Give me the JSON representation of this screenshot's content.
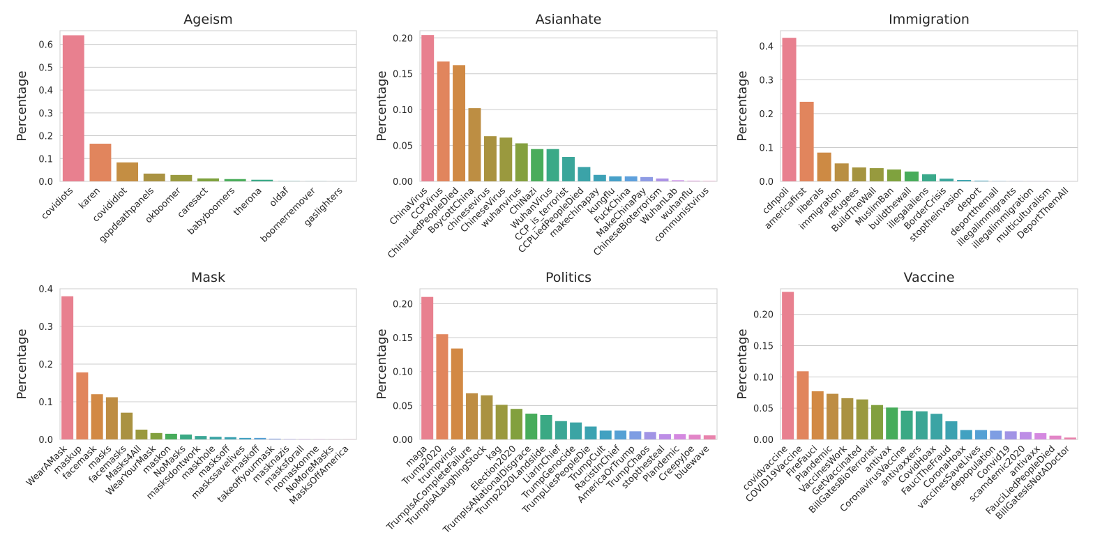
{
  "chart_data": [
    {
      "type": "bar",
      "title": "Ageism",
      "ylabel": "Percentage",
      "xlabel": "",
      "ylim": [
        0,
        0.66
      ],
      "yticks": [
        0.0,
        0.1,
        0.2,
        0.3,
        0.4,
        0.5,
        0.6
      ],
      "ytick_labels": [
        "0.0",
        "0.1",
        "0.2",
        "0.3",
        "0.4",
        "0.5",
        "0.6"
      ],
      "categories": [
        "covidiots",
        "karen",
        "covididiot",
        "gopdeathpanels",
        "okboomer",
        "caresact",
        "babyboomers",
        "therona",
        "oldaf",
        "boomerremover",
        "gaslighters"
      ],
      "values": [
        0.64,
        0.165,
        0.083,
        0.034,
        0.028,
        0.013,
        0.01,
        0.007,
        0.001,
        0.0005,
        0.0003
      ],
      "colors": [
        "#e8808f",
        "#e1855d",
        "#c48e43",
        "#aa9242",
        "#9a9a3f",
        "#7fa23e",
        "#4aad5b",
        "#3aa987",
        "#3ba59e",
        "#3ba3b0",
        "#5aa2d6"
      ],
      "grid": true
    },
    {
      "type": "bar",
      "title": "Asianhate",
      "ylabel": "Percentage",
      "xlabel": "",
      "ylim": [
        0,
        0.21
      ],
      "yticks": [
        0.0,
        0.05,
        0.1,
        0.15,
        0.2
      ],
      "ytick_labels": [
        "0.00",
        "0.05",
        "0.10",
        "0.15",
        "0.20"
      ],
      "categories": [
        "ChinaVirus",
        "CCPVirus",
        "ChinaLiedPeopleDied",
        "BoycottChina",
        "chinesevirus",
        "ChineseVirus",
        "wuhanvirus",
        "ChiNazi",
        "WuhanVirus",
        "CCP_is_terrorist",
        "CCPLiedPeopleDied",
        "makechinapay",
        "kungflu",
        "FuckChina",
        "MakeChinaPay",
        "ChineseBioterrorism",
        "WuhanLab",
        "wuhanflu",
        "communistvirus"
      ],
      "values": [
        0.204,
        0.167,
        0.162,
        0.102,
        0.063,
        0.061,
        0.053,
        0.045,
        0.045,
        0.034,
        0.02,
        0.009,
        0.007,
        0.007,
        0.006,
        0.004,
        0.0015,
        0.0008,
        0.0005
      ],
      "colors": [
        "#e8808f",
        "#e1855d",
        "#d08944",
        "#bd8e43",
        "#a9923f",
        "#9a993e",
        "#84a03e",
        "#49ac5b",
        "#3aa987",
        "#3ba69a",
        "#3ba3a8",
        "#3da1b6",
        "#47a0c8",
        "#5ea0dc",
        "#8e9be4",
        "#ac92e5",
        "#c88be6",
        "#d983d6",
        "#e684bb"
      ],
      "grid": true
    },
    {
      "type": "bar",
      "title": "Immigration",
      "ylabel": "Percentage",
      "xlabel": "",
      "ylim": [
        0,
        0.445
      ],
      "yticks": [
        0.0,
        0.1,
        0.2,
        0.3,
        0.4
      ],
      "ytick_labels": [
        "0.0",
        "0.1",
        "0.2",
        "0.3",
        "0.4"
      ],
      "categories": [
        "cdnpoli",
        "americafirst",
        "liberals",
        "immigration",
        "refugees",
        "BuildTheWall",
        "MuslimBan",
        "buildthewall",
        "illegalaliens",
        "BorderCrisis",
        "stoptheinvasion",
        "deport",
        "deportthemall",
        "illegalimmigrants",
        "illegalimmigration",
        "multiculturalism",
        "DeportThemAll"
      ],
      "values": [
        0.424,
        0.235,
        0.085,
        0.053,
        0.041,
        0.039,
        0.035,
        0.029,
        0.021,
        0.008,
        0.004,
        0.002,
        0.0006,
        0.0004,
        0.0003,
        0.0002,
        0.0001
      ],
      "colors": [
        "#e8808f",
        "#e1855d",
        "#cd8a44",
        "#b98f43",
        "#a59440",
        "#979a3e",
        "#7fa23e",
        "#48ac5b",
        "#3aa98a",
        "#3ba69c",
        "#3ba3ad",
        "#3ea1bf",
        "#50a0d2",
        "#7f9de3",
        "#a694e5",
        "#c78be6",
        "#df86c2"
      ],
      "grid": true
    },
    {
      "type": "bar",
      "title": "Mask",
      "ylabel": "Percentage",
      "xlabel": "",
      "ylim": [
        0,
        0.4
      ],
      "yticks": [
        0.0,
        0.1,
        0.2,
        0.3,
        0.4
      ],
      "ytick_labels": [
        "0.0",
        "0.1",
        "0.2",
        "0.3",
        "0.4"
      ],
      "categories": [
        "WearAMask",
        "maskup",
        "facemask",
        "masks",
        "facemasks",
        "Masks4All",
        "WearYourMask",
        "maskon",
        "NoMasks",
        "masksdontwork",
        "maskhole",
        "masksoff",
        "maskssavelives",
        "maskoff",
        "takeoffyourmask",
        "masknazis",
        "masksforall",
        "nomaskonme",
        "NoMoreMasks",
        "MasksOffAmerica"
      ],
      "values": [
        0.38,
        0.178,
        0.12,
        0.112,
        0.071,
        0.026,
        0.017,
        0.015,
        0.013,
        0.009,
        0.007,
        0.006,
        0.004,
        0.004,
        0.002,
        0.001,
        0.0008,
        0.0005,
        0.0004,
        0.0003
      ],
      "colors": [
        "#e8808f",
        "#e1855d",
        "#d28944",
        "#be8d43",
        "#aa9241",
        "#9a993e",
        "#82a03e",
        "#47ac5b",
        "#3aa984",
        "#3ba695",
        "#3ba4a4",
        "#3ba2b1",
        "#41a1c1",
        "#55a0d4",
        "#7e9de3",
        "#a194e5",
        "#bd8de6",
        "#d488e0",
        "#e285c7",
        "#e883ac"
      ],
      "grid": true
    },
    {
      "type": "bar",
      "title": "Politics",
      "ylabel": "Percentage",
      "xlabel": "",
      "ylim": [
        0,
        0.222
      ],
      "yticks": [
        0.0,
        0.05,
        0.1,
        0.15,
        0.2
      ],
      "ytick_labels": [
        "0.00",
        "0.05",
        "0.10",
        "0.15",
        "0.20"
      ],
      "categories": [
        "maga",
        "Trump2020",
        "trumpvirus",
        "TrumpIsACompleteFailure",
        "TrumpIsALaughingStock",
        "kag",
        "Election2020",
        "TrumpIsANationalDisgrace",
        "Trump2020Landslide",
        "LiarInChief",
        "TrumpGenocide",
        "TrumpLiesPeopleDie",
        "TrumpCult",
        "RacistInChief",
        "AmericaOrTrump",
        "TrumpChaos",
        "stopthesteal",
        "Plandemic",
        "CreepyJoe",
        "bluewave"
      ],
      "values": [
        0.21,
        0.155,
        0.134,
        0.068,
        0.065,
        0.051,
        0.045,
        0.038,
        0.036,
        0.027,
        0.025,
        0.019,
        0.013,
        0.013,
        0.012,
        0.011,
        0.008,
        0.008,
        0.007,
        0.006
      ],
      "colors": [
        "#e8808f",
        "#e1855d",
        "#d28944",
        "#be8d43",
        "#aa9241",
        "#9a993e",
        "#82a03e",
        "#47ac5b",
        "#3aa984",
        "#3ba695",
        "#3ba4a4",
        "#3ba2b1",
        "#41a1c1",
        "#55a0d4",
        "#7e9de3",
        "#a194e5",
        "#bd8de6",
        "#d488e0",
        "#e285c7",
        "#e883ac"
      ],
      "grid": true
    },
    {
      "type": "bar",
      "title": "Vaccine",
      "ylabel": "Percentage",
      "xlabel": "",
      "ylim": [
        0,
        0.241
      ],
      "yticks": [
        0.0,
        0.05,
        0.1,
        0.15,
        0.2
      ],
      "ytick_labels": [
        "0.00",
        "0.05",
        "0.10",
        "0.15",
        "0.20"
      ],
      "categories": [
        "covidvaccine",
        "COVID19Vaccine",
        "FireFauci",
        "Plandemic",
        "VaccinesWork",
        "GetVaccinated",
        "BillGatesBioTerrorist",
        "antivax",
        "CoronavirusVaccine",
        "antivaxxers",
        "CovidHoax",
        "FauciTheFraud",
        "CoronaHoax",
        "vaccinesSaveLives",
        "depopulation",
        "Convid19",
        "scamdemic2020",
        "antivaxx",
        "FauciLiedPeopleDied",
        "BillGatesIsNotADoctor"
      ],
      "values": [
        0.236,
        0.109,
        0.077,
        0.073,
        0.066,
        0.064,
        0.055,
        0.051,
        0.046,
        0.045,
        0.041,
        0.029,
        0.015,
        0.015,
        0.014,
        0.013,
        0.012,
        0.01,
        0.006,
        0.003
      ],
      "colors": [
        "#e8808f",
        "#e1855d",
        "#d28944",
        "#be8d43",
        "#aa9241",
        "#9a993e",
        "#82a03e",
        "#47ac5b",
        "#3aa984",
        "#3ba695",
        "#3ba4a4",
        "#3ba2b1",
        "#41a1c1",
        "#55a0d4",
        "#7e9de3",
        "#a194e5",
        "#bd8de6",
        "#d488e0",
        "#e285c7",
        "#e883ac"
      ],
      "grid": true
    }
  ]
}
